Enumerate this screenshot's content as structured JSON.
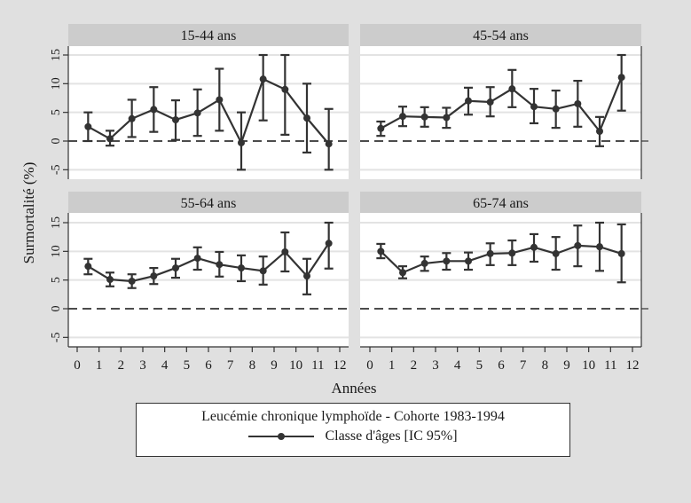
{
  "chart_data": {
    "type": "line",
    "ylabel": "Surmortalité (%)",
    "xlabel": "Années",
    "xlim": [
      0,
      12
    ],
    "ylim": [
      -6.5,
      16.5
    ],
    "x_ticks": [
      "0",
      "1",
      "2",
      "3",
      "4",
      "5",
      "6",
      "7",
      "8",
      "9",
      "10",
      "11",
      "12"
    ],
    "y_ticks": [
      "-5",
      "0",
      "5",
      "10",
      "15"
    ],
    "reference_line": 0,
    "grid": true,
    "legend": {
      "title": "Leucémie chronique lymphoïde - Cohorte 1983-1994",
      "entry": "Classe d'âges [IC 95%]",
      "placement": "bottom"
    },
    "x": [
      0.5,
      1.5,
      2.5,
      3.5,
      4.5,
      5.5,
      6.5,
      7.5,
      8.5,
      9.5,
      10.5,
      11.5
    ],
    "panels": [
      {
        "title": "15-44 ans",
        "values": [
          2.5,
          0.4,
          3.9,
          5.5,
          3.7,
          4.9,
          7.2,
          -0.3,
          10.8,
          9.0,
          4.0,
          -0.5
        ],
        "lower": [
          0.0,
          -0.8,
          0.7,
          1.6,
          0.2,
          0.9,
          1.8,
          -5.0,
          3.6,
          1.1,
          -2.0,
          -5.0
        ],
        "upper": [
          5.0,
          1.8,
          7.2,
          9.4,
          7.1,
          9.0,
          12.6,
          5.0,
          15.0,
          15.0,
          10.0,
          5.6
        ]
      },
      {
        "title": "45-54 ans",
        "values": [
          2.2,
          4.3,
          4.2,
          4.1,
          7.0,
          6.8,
          9.1,
          6.0,
          5.6,
          6.5,
          1.7,
          11.1
        ],
        "lower": [
          0.9,
          2.6,
          2.5,
          2.3,
          4.6,
          4.3,
          5.9,
          3.1,
          2.3,
          2.5,
          -0.9,
          5.3
        ],
        "upper": [
          3.4,
          6.0,
          5.9,
          5.8,
          9.3,
          9.4,
          12.4,
          9.1,
          8.8,
          10.5,
          4.2,
          15.0
        ]
      },
      {
        "title": "55-64 ans",
        "values": [
          7.4,
          5.1,
          4.8,
          5.7,
          7.1,
          8.8,
          7.7,
          7.1,
          6.6,
          9.9,
          5.7,
          11.4
        ],
        "lower": [
          6.0,
          3.9,
          3.6,
          4.3,
          5.4,
          6.8,
          5.6,
          4.8,
          4.2,
          6.5,
          2.5,
          7.0
        ],
        "upper": [
          8.7,
          6.3,
          6.0,
          7.1,
          8.7,
          10.7,
          9.9,
          9.3,
          9.1,
          13.3,
          8.7,
          15.0
        ]
      },
      {
        "title": "65-74 ans",
        "values": [
          10.0,
          6.3,
          7.9,
          8.3,
          8.3,
          9.6,
          9.7,
          10.7,
          9.6,
          11.0,
          10.8,
          9.6
        ],
        "lower": [
          8.8,
          5.3,
          6.6,
          6.8,
          6.8,
          7.6,
          7.6,
          8.2,
          6.8,
          7.4,
          6.6,
          4.6
        ],
        "upper": [
          11.3,
          7.4,
          9.1,
          9.7,
          9.8,
          11.4,
          11.9,
          13.0,
          12.5,
          14.5,
          15.0,
          14.7
        ]
      }
    ],
    "colors": {
      "background": "#e0e0e0",
      "panel_header": "#cccccc",
      "plot_bg": "#ffffff",
      "grid": "#e3e3e3",
      "series": "#333333"
    }
  }
}
